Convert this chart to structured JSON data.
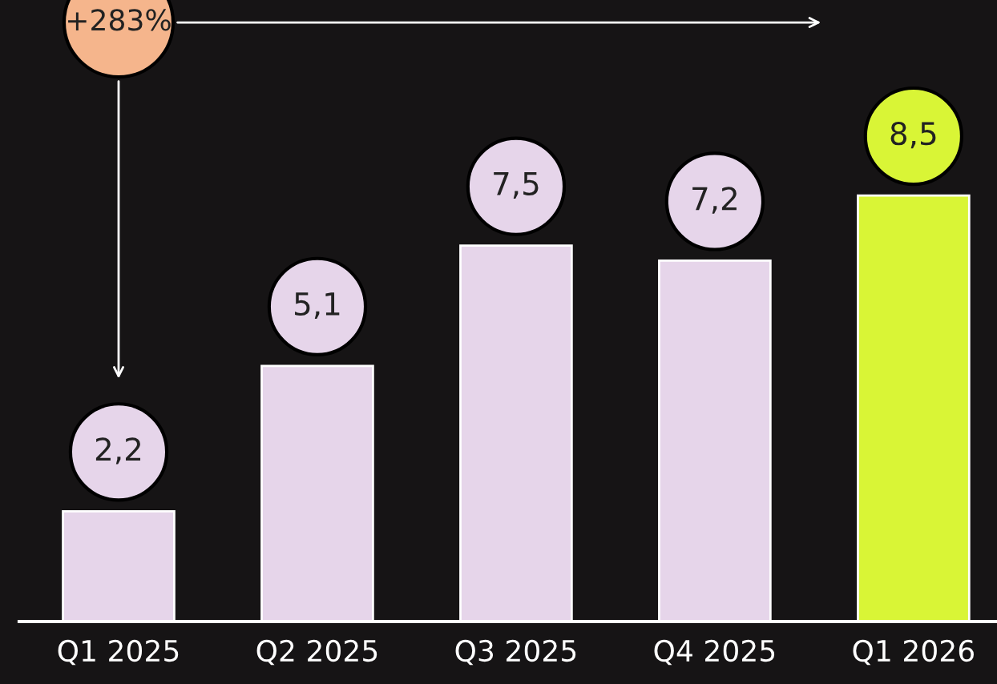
{
  "chart_data": {
    "type": "bar",
    "categories": [
      "Q1 2025",
      "Q2 2025",
      "Q3 2025",
      "Q4 2025",
      "Q1 2026"
    ],
    "values": [
      2.2,
      5.1,
      7.5,
      7.2,
      8.5
    ],
    "value_labels": [
      "2,2",
      "5,1",
      "7,5",
      "7,2",
      "8,5"
    ],
    "colors": [
      "#e6d5ea",
      "#e6d5ea",
      "#e6d5ea",
      "#e6d5ea",
      "#d9f536"
    ],
    "ylim": [
      0,
      12.4
    ],
    "annotations": [
      "+283%"
    ]
  }
}
